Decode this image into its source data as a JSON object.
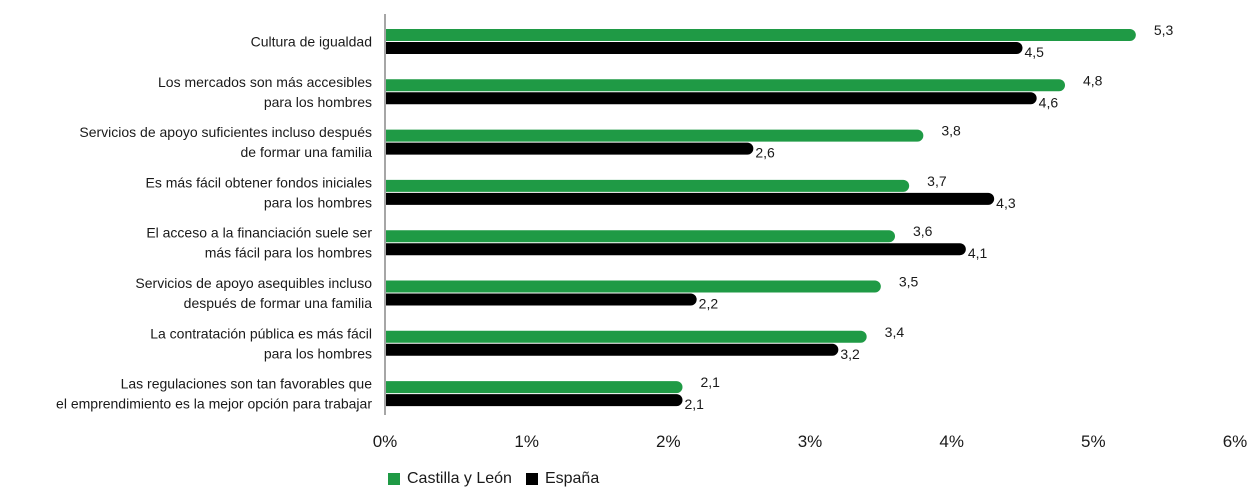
{
  "chart_data": {
    "type": "bar",
    "orientation": "horizontal",
    "categories": [
      [
        "Cultura de igualdad"
      ],
      [
        "Los mercados son más accesibles",
        "para los hombres"
      ],
      [
        "Servicios de apoyo suficientes incluso después",
        "de formar una familia"
      ],
      [
        "Es más fácil obtener fondos iniciales",
        "para los hombres"
      ],
      [
        "El acceso a la financiación suele ser",
        "más fácil para los hombres"
      ],
      [
        "Servicios de apoyo asequibles incluso",
        "después de formar una familia"
      ],
      [
        "La contratación pública es más fácil",
        "para los hombres"
      ],
      [
        "Las regulaciones son tan favorables que",
        "el emprendimiento es la mejor opción para trabajar"
      ]
    ],
    "series": [
      {
        "name": "Castilla y León",
        "color": "#1f9a45",
        "values": [
          5.3,
          4.8,
          3.8,
          3.7,
          3.6,
          3.5,
          3.4,
          2.1
        ],
        "labels": [
          "5,3",
          "4,8",
          "3,8",
          "3,7",
          "3,6",
          "3,5",
          "3,4",
          "2,1"
        ]
      },
      {
        "name": "España",
        "color": "#000000",
        "values": [
          4.5,
          4.6,
          2.6,
          4.3,
          4.1,
          2.2,
          3.2,
          2.1
        ],
        "labels": [
          "4,5",
          "4,6",
          "2,6",
          "4,3",
          "4,1",
          "2,2",
          "3,2",
          "2,1"
        ]
      }
    ],
    "xlim": [
      0,
      6
    ],
    "xticks": [
      "0%",
      "1%",
      "2%",
      "3%",
      "4%",
      "5%",
      "6%"
    ],
    "title": "",
    "xlabel": "",
    "ylabel": "",
    "grid": false,
    "legend_position": "bottom"
  },
  "legend": {
    "castilla_label": "Castilla y León",
    "espana_label": "España"
  }
}
